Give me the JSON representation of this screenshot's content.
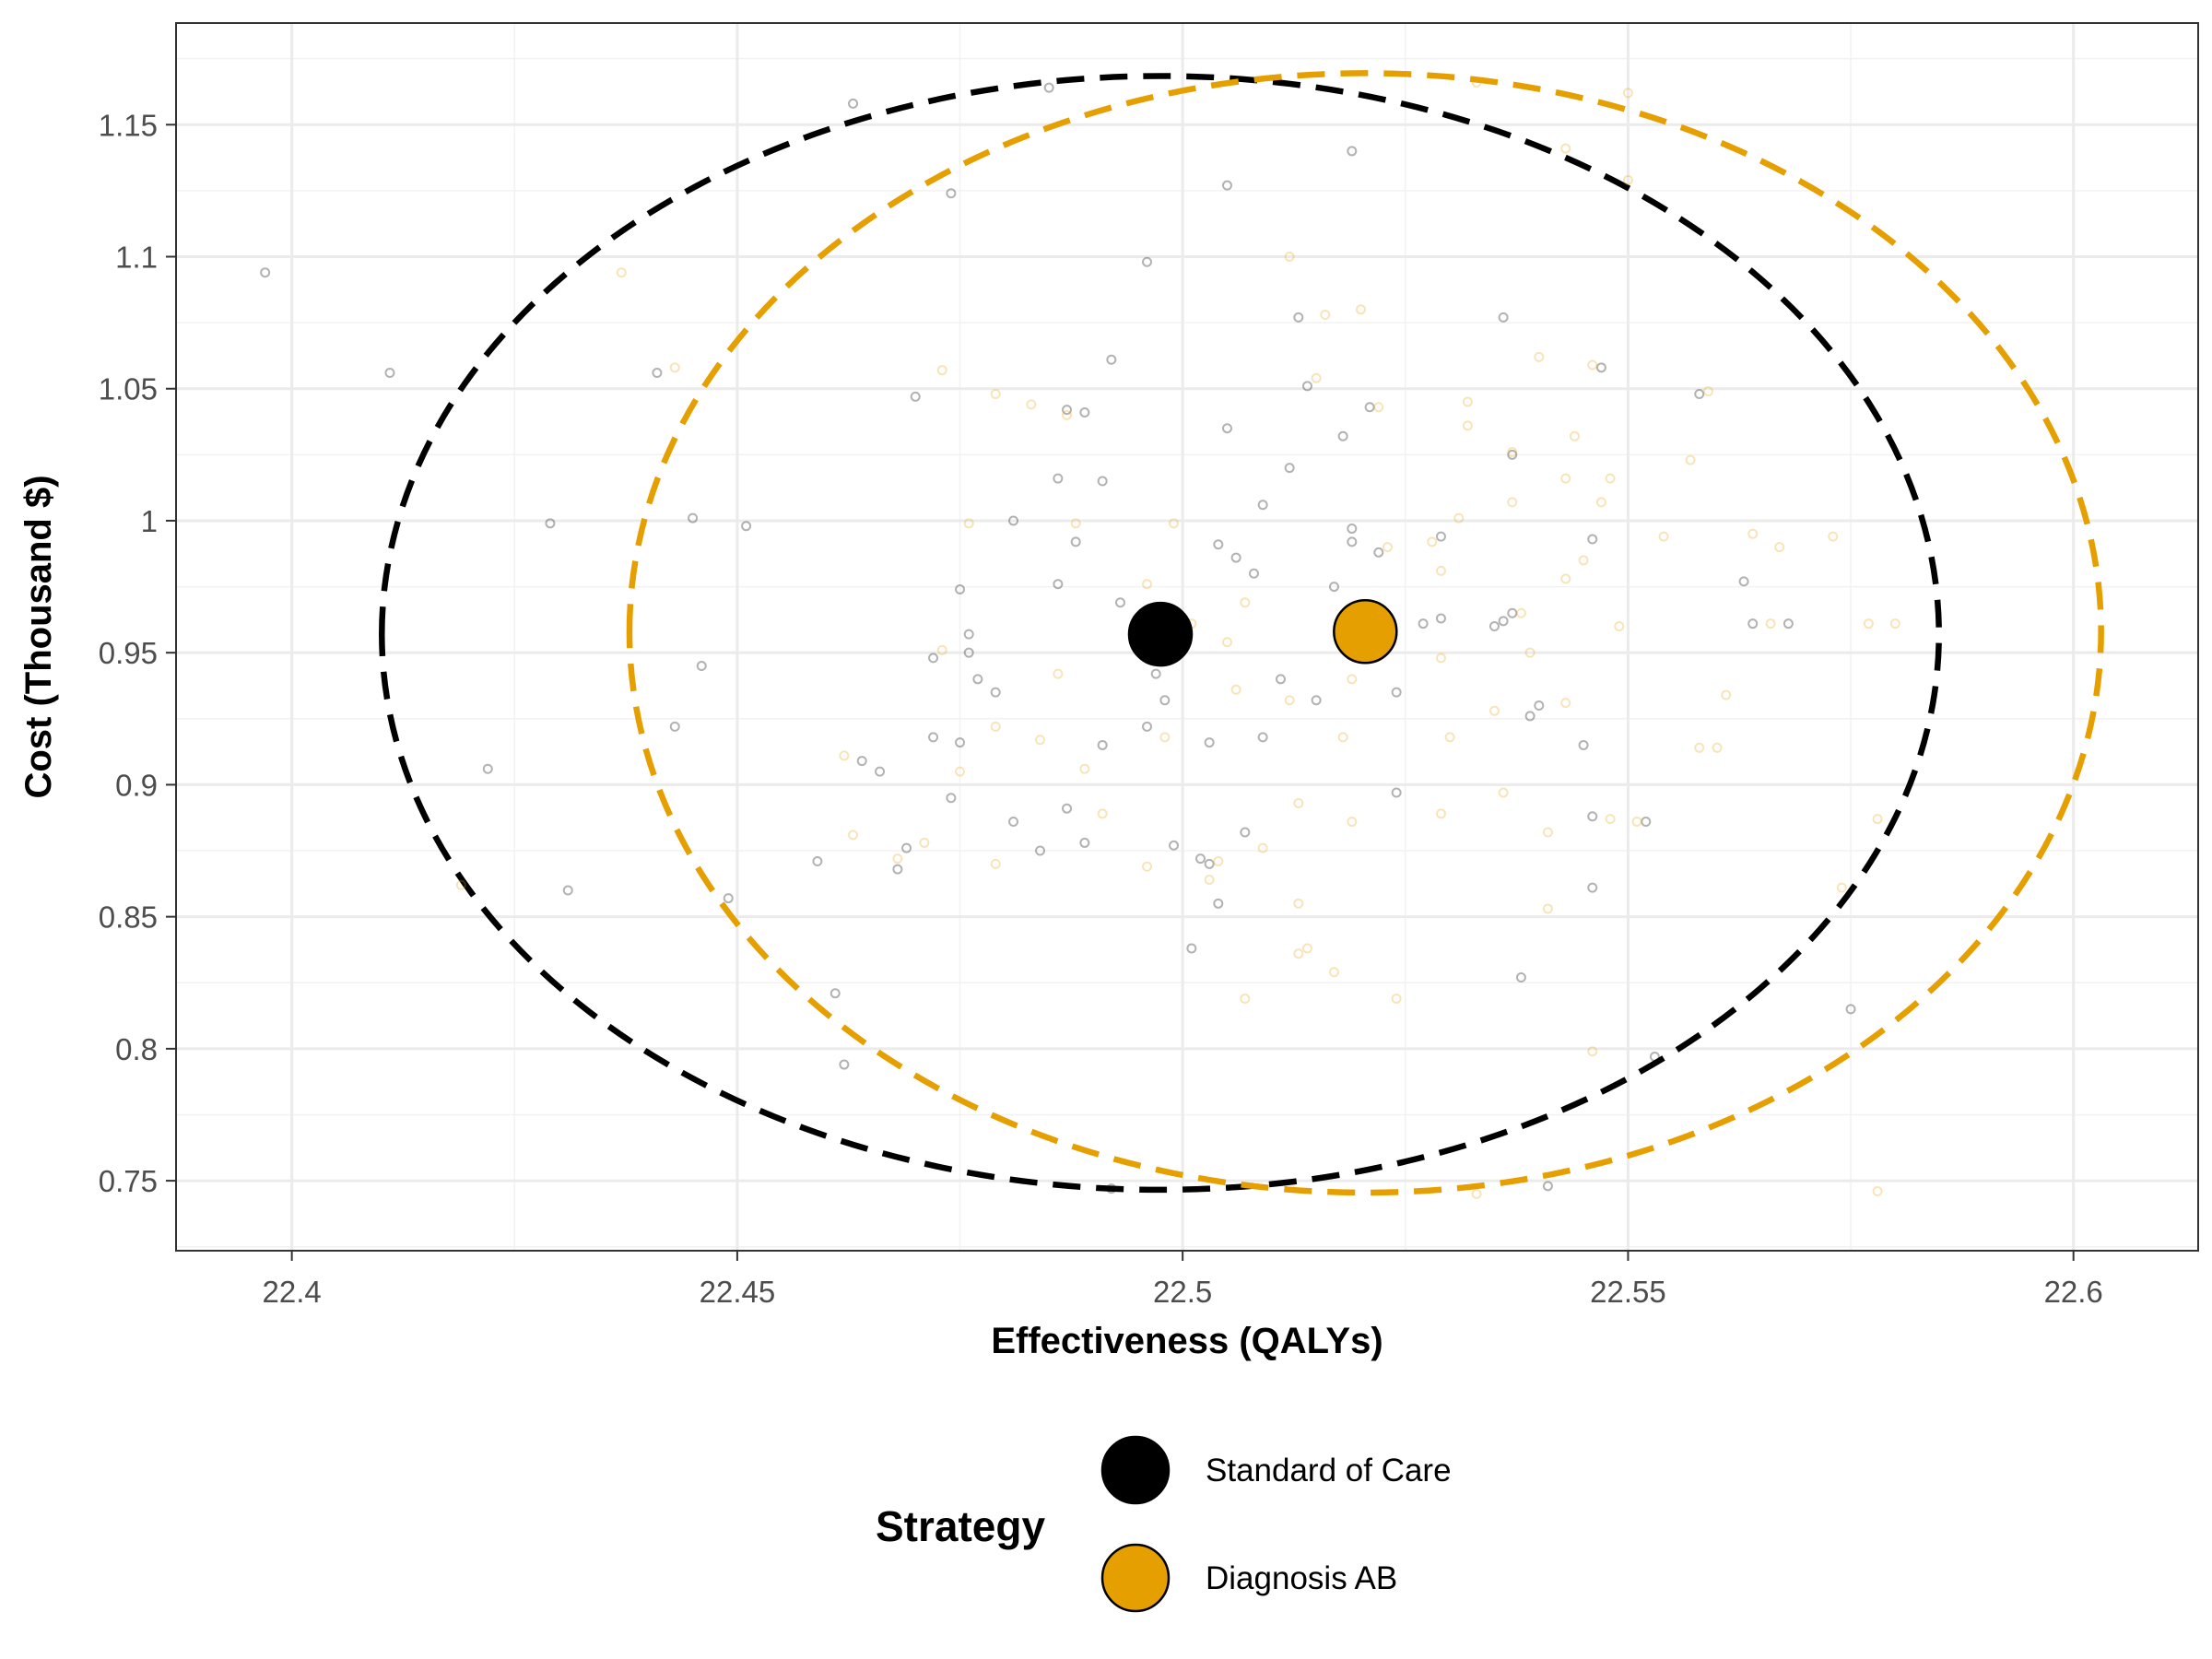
{
  "chart_data": {
    "type": "scatter",
    "xlabel": "Effectiveness (QALYs)",
    "ylabel": "Cost (Thousand $)",
    "xlim": [
      22.387,
      22.614
    ],
    "ylim": [
      0.7235,
      1.1885
    ],
    "x_ticks": [
      22.4,
      22.45,
      22.5,
      22.55,
      22.6
    ],
    "x_tick_labels": [
      "22.4",
      "22.45",
      "22.5",
      "22.55",
      "22.6"
    ],
    "y_ticks": [
      0.75,
      0.8,
      0.85,
      0.9,
      0.95,
      1.0,
      1.05,
      1.1,
      1.15
    ],
    "y_tick_labels": [
      "0.75",
      "0.8",
      "0.85",
      "0.9",
      "0.95",
      "1",
      "1.05",
      "1.1",
      "1.15"
    ],
    "grid": true,
    "legend_title": "Strategy",
    "legend_position": "bottom",
    "series": [
      {
        "name": "Standard of Care",
        "color": "#000000",
        "mean": [
          22.4975,
          0.957
        ],
        "ellipse": {
          "cx": 22.4975,
          "cy": 0.957,
          "rx": 0.0874,
          "ry_upper": 0.2115,
          "ry_lower": 0.2105
        },
        "points": [
          [
            22.397,
            1.094
          ],
          [
            22.411,
            1.056
          ],
          [
            22.422,
            0.906
          ],
          [
            22.429,
            0.999
          ],
          [
            22.431,
            0.86
          ],
          [
            22.441,
            1.056
          ],
          [
            22.443,
            0.922
          ],
          [
            22.445,
            1.001
          ],
          [
            22.446,
            0.945
          ],
          [
            22.449,
            0.857
          ],
          [
            22.451,
            0.998
          ],
          [
            22.459,
            0.871
          ],
          [
            22.461,
            0.821
          ],
          [
            22.462,
            0.794
          ],
          [
            22.463,
            1.158
          ],
          [
            22.464,
            0.909
          ],
          [
            22.466,
            0.905
          ],
          [
            22.468,
            0.868
          ],
          [
            22.469,
            0.876
          ],
          [
            22.47,
            1.047
          ],
          [
            22.472,
            0.948
          ],
          [
            22.472,
            0.918
          ],
          [
            22.474,
            1.124
          ],
          [
            22.474,
            0.895
          ],
          [
            22.475,
            0.916
          ],
          [
            22.475,
            0.974
          ],
          [
            22.476,
            0.957
          ],
          [
            22.476,
            0.95
          ],
          [
            22.477,
            0.94
          ],
          [
            22.479,
            0.935
          ],
          [
            22.481,
            1.0
          ],
          [
            22.481,
            0.886
          ],
          [
            22.484,
            0.875
          ],
          [
            22.485,
            1.164
          ],
          [
            22.486,
            0.976
          ],
          [
            22.486,
            1.016
          ],
          [
            22.487,
            0.891
          ],
          [
            22.487,
            1.042
          ],
          [
            22.488,
            0.992
          ],
          [
            22.489,
            1.041
          ],
          [
            22.489,
            0.878
          ],
          [
            22.491,
            0.915
          ],
          [
            22.491,
            1.015
          ],
          [
            22.492,
            1.061
          ],
          [
            22.493,
            0.969
          ],
          [
            22.496,
            1.098
          ],
          [
            22.496,
            0.922
          ],
          [
            22.497,
            0.942
          ],
          [
            22.498,
            0.932
          ],
          [
            22.499,
            0.877
          ],
          [
            22.501,
            0.838
          ],
          [
            22.502,
            0.872
          ],
          [
            22.503,
            0.916
          ],
          [
            22.503,
            0.87
          ],
          [
            22.504,
            0.991
          ],
          [
            22.504,
            0.855
          ],
          [
            22.505,
            1.127
          ],
          [
            22.505,
            1.035
          ],
          [
            22.506,
            0.986
          ],
          [
            22.507,
            0.882
          ],
          [
            22.508,
            0.98
          ],
          [
            22.509,
            0.918
          ],
          [
            22.509,
            1.006
          ],
          [
            22.511,
            0.94
          ],
          [
            22.512,
            1.02
          ],
          [
            22.513,
            1.077
          ],
          [
            22.514,
            1.051
          ],
          [
            22.515,
            0.932
          ],
          [
            22.517,
            0.975
          ],
          [
            22.518,
            1.032
          ],
          [
            22.519,
            0.992
          ],
          [
            22.519,
            0.997
          ],
          [
            22.519,
            1.14
          ],
          [
            22.521,
            1.043
          ],
          [
            22.522,
            0.988
          ],
          [
            22.524,
            0.935
          ],
          [
            22.524,
            0.897
          ],
          [
            22.527,
            0.961
          ],
          [
            22.529,
            0.963
          ],
          [
            22.529,
            0.994
          ],
          [
            22.535,
            0.96
          ],
          [
            22.536,
            1.077
          ],
          [
            22.536,
            0.962
          ],
          [
            22.537,
            0.965
          ],
          [
            22.537,
            1.025
          ],
          [
            22.538,
            0.827
          ],
          [
            22.539,
            0.926
          ],
          [
            22.54,
            0.93
          ],
          [
            22.541,
            0.748
          ],
          [
            22.545,
            0.915
          ],
          [
            22.546,
            0.888
          ],
          [
            22.546,
            0.861
          ],
          [
            22.546,
            0.993
          ],
          [
            22.547,
            1.058
          ],
          [
            22.552,
            0.886
          ],
          [
            22.553,
            0.797
          ],
          [
            22.558,
            1.048
          ],
          [
            22.563,
            0.977
          ],
          [
            22.564,
            0.961
          ],
          [
            22.568,
            0.961
          ],
          [
            22.575,
            0.815
          ],
          [
            22.492,
            0.747
          ]
        ]
      },
      {
        "name": "Diagnosis AB",
        "color": "#E69F00",
        "mean": [
          22.5205,
          0.958
        ],
        "ellipse": {
          "cx": 22.5205,
          "cy": 0.958,
          "rx": 0.0826,
          "ry_upper": 0.2115,
          "ry_lower": 0.2125
        },
        "points": [
          [
            22.419,
            0.862
          ],
          [
            22.437,
            1.094
          ],
          [
            22.443,
            1.058
          ],
          [
            22.462,
            0.911
          ],
          [
            22.463,
            0.881
          ],
          [
            22.468,
            0.872
          ],
          [
            22.471,
            0.878
          ],
          [
            22.473,
            1.057
          ],
          [
            22.473,
            0.951
          ],
          [
            22.475,
            0.905
          ],
          [
            22.476,
            0.999
          ],
          [
            22.479,
            1.048
          ],
          [
            22.479,
            0.922
          ],
          [
            22.479,
            0.87
          ],
          [
            22.483,
            1.044
          ],
          [
            22.484,
            0.917
          ],
          [
            22.486,
            0.942
          ],
          [
            22.487,
            1.04
          ],
          [
            22.488,
            0.999
          ],
          [
            22.489,
            0.906
          ],
          [
            22.491,
            0.889
          ],
          [
            22.496,
            0.869
          ],
          [
            22.496,
            0.976
          ],
          [
            22.498,
            0.918
          ],
          [
            22.499,
            0.999
          ],
          [
            22.501,
            0.961
          ],
          [
            22.503,
            0.864
          ],
          [
            22.504,
            0.871
          ],
          [
            22.505,
            0.954
          ],
          [
            22.506,
            0.936
          ],
          [
            22.507,
            0.969
          ],
          [
            22.507,
            0.819
          ],
          [
            22.509,
            0.876
          ],
          [
            22.512,
            1.1
          ],
          [
            22.512,
            0.932
          ],
          [
            22.513,
            0.836
          ],
          [
            22.513,
            0.855
          ],
          [
            22.513,
            0.893
          ],
          [
            22.514,
            0.838
          ],
          [
            22.515,
            1.054
          ],
          [
            22.516,
            1.078
          ],
          [
            22.517,
            0.829
          ],
          [
            22.518,
            0.918
          ],
          [
            22.519,
            0.886
          ],
          [
            22.519,
            0.94
          ],
          [
            22.52,
            1.08
          ],
          [
            22.522,
            1.043
          ],
          [
            22.523,
            0.99
          ],
          [
            22.524,
            0.819
          ],
          [
            22.528,
            0.992
          ],
          [
            22.529,
            0.948
          ],
          [
            22.529,
            0.981
          ],
          [
            22.529,
            0.889
          ],
          [
            22.53,
            0.918
          ],
          [
            22.531,
            1.001
          ],
          [
            22.532,
            1.045
          ],
          [
            22.532,
            1.036
          ],
          [
            22.533,
            0.745
          ],
          [
            22.533,
            1.166
          ],
          [
            22.535,
            0.928
          ],
          [
            22.536,
            0.897
          ],
          [
            22.537,
            1.026
          ],
          [
            22.537,
            1.007
          ],
          [
            22.538,
            0.965
          ],
          [
            22.539,
            0.95
          ],
          [
            22.54,
            1.062
          ],
          [
            22.541,
            0.882
          ],
          [
            22.541,
            0.853
          ],
          [
            22.543,
            0.931
          ],
          [
            22.543,
            0.978
          ],
          [
            22.543,
            1.016
          ],
          [
            22.543,
            1.141
          ],
          [
            22.544,
            1.032
          ],
          [
            22.545,
            0.985
          ],
          [
            22.546,
            0.799
          ],
          [
            22.546,
            1.059
          ],
          [
            22.547,
            1.007
          ],
          [
            22.548,
            1.016
          ],
          [
            22.548,
            0.887
          ],
          [
            22.549,
            0.96
          ],
          [
            22.55,
            1.129
          ],
          [
            22.55,
            1.162
          ],
          [
            22.551,
            0.886
          ],
          [
            22.554,
            0.994
          ],
          [
            22.557,
            1.023
          ],
          [
            22.558,
            0.914
          ],
          [
            22.559,
            1.049
          ],
          [
            22.56,
            0.914
          ],
          [
            22.561,
            0.934
          ],
          [
            22.564,
            0.995
          ],
          [
            22.566,
            0.961
          ],
          [
            22.567,
            0.99
          ],
          [
            22.573,
            0.994
          ],
          [
            22.574,
            0.861
          ],
          [
            22.577,
            0.961
          ],
          [
            22.578,
            0.887
          ],
          [
            22.58,
            0.961
          ],
          [
            22.578,
            0.746
          ]
        ]
      }
    ]
  }
}
